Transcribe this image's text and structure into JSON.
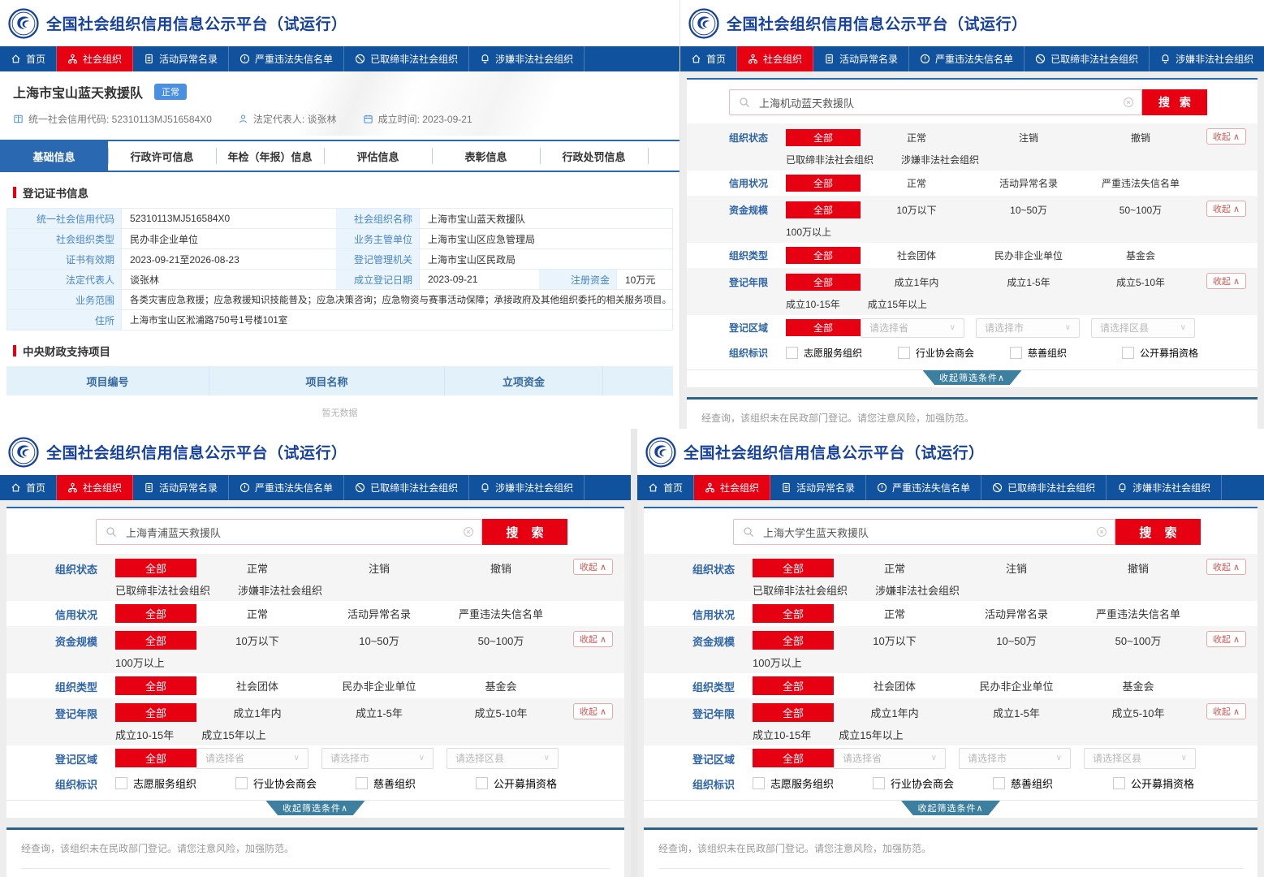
{
  "colors": {
    "brand_blue": "#16419c",
    "nav_blue": "#11529f",
    "accent_red": "#e60012",
    "tab_blue": "#2a69b1",
    "badge_blue": "#4a90e2",
    "collapse_teal": "#3d7f9e"
  },
  "shared": {
    "site_title": "全国社会组织信用信息公示平台（试运行）",
    "nav": [
      {
        "label": "首页",
        "icon": "home-icon",
        "active": false
      },
      {
        "label": "社会组织",
        "icon": "org-icon",
        "active": true
      },
      {
        "label": "活动异常名录",
        "icon": "doc-icon",
        "active": false
      },
      {
        "label": "严重违法失信名单",
        "icon": "warning-icon",
        "active": false
      },
      {
        "label": "已取缔非法社会组织",
        "icon": "ban-icon",
        "active": false
      },
      {
        "label": "涉嫌非法社会组织",
        "icon": "alert-icon",
        "active": false
      }
    ],
    "search_button": "搜 索",
    "filters": {
      "rows": [
        {
          "label": "组织状态",
          "all": "全部",
          "line1": [
            "正常",
            "注销",
            "撤销"
          ],
          "line2": [
            "已取缔非法社会组织",
            "涉嫌非法社会组织"
          ],
          "collapse": true,
          "shaded": true
        },
        {
          "label": "信用状况",
          "all": "全部",
          "line1": [
            "正常",
            "活动异常名录",
            "严重违法失信名单"
          ],
          "collapse": false,
          "shaded": false
        },
        {
          "label": "资金规模",
          "all": "全部",
          "line1": [
            "10万以下",
            "10~50万",
            "50~100万"
          ],
          "line2": [
            "100万以上"
          ],
          "collapse": true,
          "shaded": true
        },
        {
          "label": "组织类型",
          "all": "全部",
          "line1": [
            "社会团体",
            "民办非企业单位",
            "基金会"
          ],
          "collapse": false,
          "shaded": false
        },
        {
          "label": "登记年限",
          "all": "全部",
          "line1": [
            "成立1年内",
            "成立1-5年",
            "成立5-10年"
          ],
          "line2": [
            "成立10-15年",
            "成立15年以上"
          ],
          "collapse": true,
          "shaded": true
        },
        {
          "label": "登记区域",
          "all": "全部",
          "selects": [
            "请选择省",
            "请选择市",
            "请选择区县"
          ],
          "collapse": false,
          "shaded": false
        },
        {
          "label": "组织标识",
          "checkboxes": [
            "志愿服务组织",
            "行业协会商会",
            "慈善组织",
            "公开募捐资格"
          ],
          "collapse": false,
          "shaded": false
        }
      ],
      "collapse_mini": "收起",
      "collapse_bar": "收起筛选条件",
      "result_message": "经查询，该组织未在民政部门登记。请您注意风险，加强防范。"
    }
  },
  "panels": {
    "detail": {
      "org_name": "上海市宝山蓝天救援队",
      "status_badge": "正常",
      "meta": [
        {
          "icon": "book-icon",
          "text": "统一社会信用代码: 52310113MJ516584X0"
        },
        {
          "icon": "person-icon",
          "text": "法定代表人: 谈张林"
        },
        {
          "icon": "calendar-icon",
          "text": "成立时间: 2023-09-21"
        }
      ],
      "tabs": [
        "基础信息",
        "行政许可信息",
        "年检（年报）信息",
        "评估信息",
        "表彰信息",
        "行政处罚信息"
      ],
      "active_tab": "基础信息",
      "section1": "登记证书信息",
      "cert_rows": [
        [
          {
            "l": "统一社会信用代码",
            "v": "52310113MJ516584X0"
          },
          {
            "l": "社会组织名称",
            "v": "上海市宝山蓝天救援队"
          }
        ],
        [
          {
            "l": "社会组织类型",
            "v": "民办非企业单位"
          },
          {
            "l": "业务主管单位",
            "v": "上海市宝山区应急管理局"
          }
        ],
        [
          {
            "l": "证书有效期",
            "v": "2023-09-21至2026-08-23"
          },
          {
            "l": "登记管理机关",
            "v": "上海市宝山区民政局"
          }
        ],
        [
          {
            "l": "法定代表人",
            "v": "谈张林"
          },
          {
            "l": "成立登记日期",
            "v": "2023-09-21"
          },
          {
            "l": "注册资金",
            "v": "10万元"
          }
        ],
        [
          {
            "l": "业务范围",
            "v": "各类灾害应急救援；应急救援知识技能普及；应急决策咨询；应急物资与赛事活动保障；承接政府及其他组织委托的相关服务项目。"
          }
        ],
        [
          {
            "l": "住所",
            "v": "上海市宝山区淞浦路750号1号楼101室"
          }
        ]
      ],
      "section2": "中央财政支持项目",
      "project_headers": [
        "项目编号",
        "项目名称",
        "立项资金"
      ],
      "empty_text": "暂无数据"
    },
    "search_top": {
      "query": "上海机动蓝天救援队"
    },
    "search_bottom_left": {
      "query": "上海青浦蓝天救援队"
    },
    "search_bottom_right": {
      "query": "上海大学生蓝天救援队"
    }
  }
}
